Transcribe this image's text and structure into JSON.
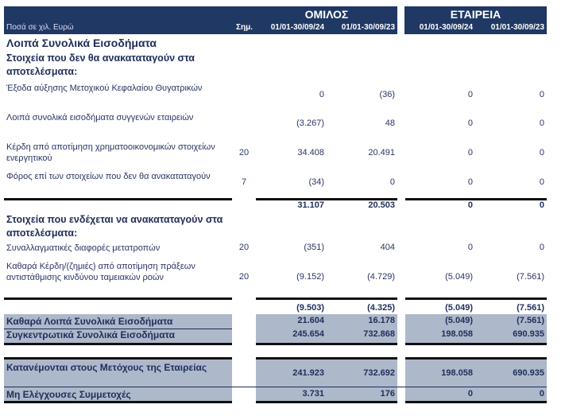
{
  "header": {
    "unit_label": "Ποσά σε χιλ. Ευρώ",
    "group_title": "ΟΜΙΛΟΣ",
    "company_title": "ΕΤΑΙΡΕΙΑ",
    "note_label": "Σημ.",
    "period_current": "01/01-30/09/24",
    "period_prior": "01/01-30/09/23"
  },
  "title": "Λοιπά Συνολικά Εισοδήματα",
  "section1": {
    "title": "Στοιχεία που δεν θα ανακαταταγούν στα αποτελέσματα:",
    "rows": [
      {
        "label": "Έξοδα αύξησης Μετοχικού Κεφαλαίου Θυγατρικών",
        "note": "",
        "values": [
          "0",
          "(36)",
          "0",
          "0"
        ]
      },
      {
        "label": "Λοιπά συνολικά εισοδήματα συγγενών εταιρειών",
        "note": "",
        "values": [
          "(3.267)",
          "48",
          "0",
          "0"
        ]
      },
      {
        "label": "Κέρδη από αποτίμηση χρηματοοικονομικών στοιχείων ενεργητικού",
        "note": "20",
        "values": [
          "34.408",
          "20.491",
          "0",
          "0"
        ]
      },
      {
        "label": "Φόρος επί των στοιχείων που δεν θα ανακαταταγούν",
        "note": "7",
        "values": [
          "(34)",
          "0",
          "0",
          "0"
        ]
      }
    ],
    "subtotal": [
      "31.107",
      "20.503",
      "0",
      "0"
    ]
  },
  "section2": {
    "title": "Στοιχεία που ενδέχεται να ανακαταταγούν στα αποτελέσματα:",
    "rows": [
      {
        "label": "Συναλλαγματικές διαφορές μετατροπών",
        "note": "20",
        "values": [
          "(351)",
          "404",
          "0",
          "0"
        ]
      },
      {
        "label": "Καθαρά Κέρδη/(ζημιές) από αποτίμηση πράξεων αντιστάθμισης κινδύνου ταμειακών ροών",
        "note": "20",
        "values": [
          "(9.152)",
          "(4.729)",
          "(5.049)",
          "(7.561)"
        ]
      }
    ],
    "subtotal": [
      "(9.503)",
      "(4.325)",
      "(5.049)",
      "(7.561)"
    ]
  },
  "totals": [
    {
      "label": "Καθαρά Λοιπά Συνολικά Εισοδήματα",
      "values": [
        "21.604",
        "16.178",
        "(5.049)",
        "(7.561)"
      ]
    },
    {
      "label": "Συγκεντρωτικά Συνολικά Εισοδήματα",
      "values": [
        "245.654",
        "732.868",
        "198.058",
        "690.935"
      ]
    }
  ],
  "attribution": [
    {
      "label": "Κατανέμονται στους Μετόχους της Εταιρείας",
      "values": [
        "241.923",
        "732.692",
        "198.058",
        "690.935"
      ]
    },
    {
      "label": "Μη Ελέγχουσες Συμμετοχές",
      "values": [
        "3.731",
        "176",
        "0",
        "0"
      ]
    }
  ],
  "colors": {
    "header": "#1f3864",
    "shade": "#adb9ca",
    "text": "#2a3563"
  }
}
